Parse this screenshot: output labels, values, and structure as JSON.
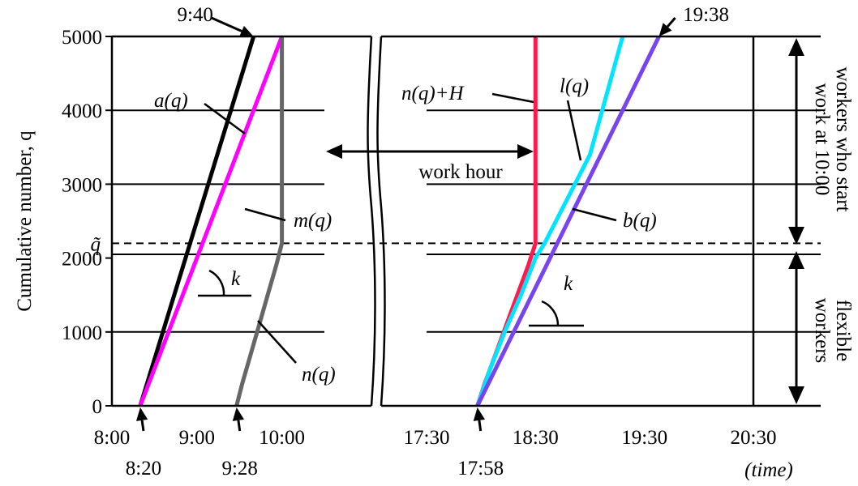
{
  "chart_data": {
    "type": "line",
    "title": "",
    "ylabel": "Cumulative number, q",
    "xlabel": "(time)",
    "ylim": [
      0,
      5000
    ],
    "yticks": [
      0,
      1000,
      2000,
      3000,
      4000,
      5000
    ],
    "y_gridlines": [
      1000,
      2050,
      3000,
      4000
    ],
    "q_tilde": {
      "label": "q̃",
      "value": 2200
    },
    "morning": {
      "xlim_minutes": [
        480,
        630
      ],
      "xtick_minutes": [
        480,
        540,
        600
      ],
      "xtick_labels": [
        "8:00",
        "9:00",
        "10:00"
      ]
    },
    "evening": {
      "xlim_minutes": [
        1050,
        1230
      ],
      "xtick_minutes": [
        1050,
        1110,
        1170,
        1230
      ],
      "xtick_labels": [
        "17:30",
        "18:30",
        "19:30",
        "20:30"
      ]
    },
    "series": [
      {
        "name": "a(q)",
        "panel": "morning",
        "color": "#000000",
        "points": [
          [
            500,
            0
          ],
          [
            580,
            5000
          ]
        ]
      },
      {
        "name": "m(q)",
        "panel": "morning",
        "color": "#ff00ff",
        "points": [
          [
            500,
            0
          ],
          [
            600,
            5000
          ]
        ]
      },
      {
        "name": "n(q)",
        "panel": "morning",
        "color": "#666666",
        "points": [
          [
            568,
            0
          ],
          [
            572,
            300
          ],
          [
            578,
            700
          ],
          [
            584,
            1100
          ],
          [
            590,
            1500
          ],
          [
            596,
            1900
          ],
          [
            600,
            2200
          ],
          [
            600,
            5000
          ]
        ]
      },
      {
        "name": "n(q)+H",
        "panel": "evening",
        "color": "#ff1a4d",
        "points": [
          [
            1078,
            0
          ],
          [
            1082,
            300
          ],
          [
            1088,
            700
          ],
          [
            1094,
            1100
          ],
          [
            1100,
            1500
          ],
          [
            1106,
            1900
          ],
          [
            1110,
            2200
          ],
          [
            1110,
            5000
          ]
        ]
      },
      {
        "name": "l(q)",
        "panel": "evening",
        "color": "#00e5ff",
        "points": [
          [
            1078,
            0
          ],
          [
            1085,
            500
          ],
          [
            1093,
            1000
          ],
          [
            1102,
            1500
          ],
          [
            1110,
            2000
          ],
          [
            1115,
            2200
          ],
          [
            1140,
            3400
          ],
          [
            1158,
            5000
          ]
        ]
      },
      {
        "name": "b(q)",
        "panel": "evening",
        "color": "#7744ee",
        "points": [
          [
            1078,
            0
          ],
          [
            1178,
            5000
          ]
        ]
      }
    ],
    "callouts_top": [
      {
        "text": "9:40",
        "panel": "morning",
        "x": 580,
        "y": 5000
      },
      {
        "text": "19:38",
        "panel": "evening",
        "x": 1178,
        "y": 5000
      }
    ],
    "callouts_bottom": [
      {
        "text": "8:20",
        "panel": "morning",
        "x": 500
      },
      {
        "text": "9:28",
        "panel": "morning",
        "x": 568
      },
      {
        "text": "17:58",
        "panel": "evening",
        "x": 1078
      }
    ],
    "annotations": {
      "work_hour": "work hour",
      "slope": "k",
      "group_upper": [
        "workers who start",
        "work at 10:00"
      ],
      "group_lower": [
        "flexible",
        "workers"
      ]
    }
  }
}
